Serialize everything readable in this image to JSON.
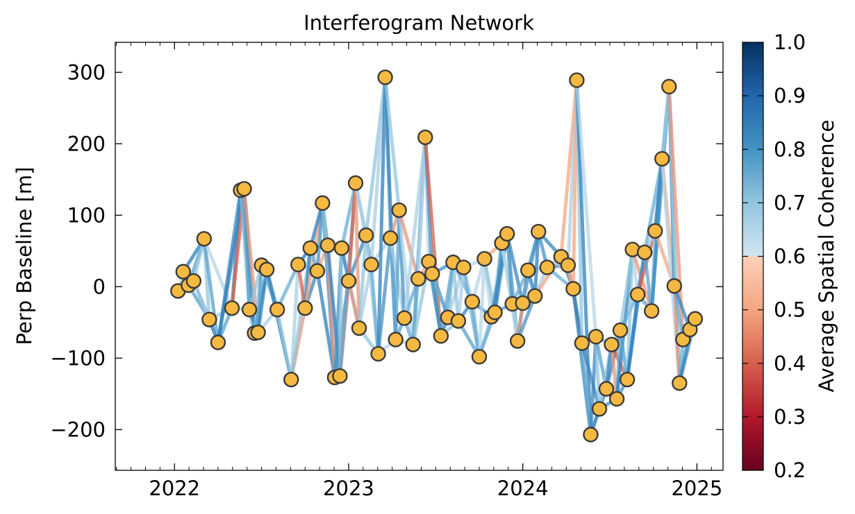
{
  "chart_data": {
    "type": "scatter",
    "title": "Interferogram Network",
    "xlabel": "",
    "ylabel": "Perp Baseline [m]",
    "xlim": [
      2021.66,
      2025.15
    ],
    "ylim": [
      -257,
      342
    ],
    "x_ticks": [
      2022,
      2023,
      2024,
      2025
    ],
    "x_tick_labels": [
      "2022",
      "2023",
      "2024",
      "2025"
    ],
    "y_ticks": [
      -200,
      -100,
      0,
      100,
      200,
      300
    ],
    "y_tick_labels": [
      "−200",
      "−100",
      "0",
      "100",
      "200",
      "300"
    ],
    "grid": false,
    "marker_color": "#f5b942",
    "colorbar": {
      "label": "Average Spatial Coherence",
      "min": 0.2,
      "max": 1.0,
      "ticks": [
        0.2,
        0.3,
        0.4,
        0.5,
        0.6,
        0.7,
        0.8,
        0.9,
        1.0
      ],
      "tick_labels": [
        "0.2",
        "0.3",
        "0.4",
        "0.5",
        "0.6",
        "0.7",
        "0.8",
        "0.9",
        "1.0"
      ]
    },
    "acquisitions": [
      [
        2022.02,
        -6
      ],
      [
        2022.05,
        21
      ],
      [
        2022.08,
        2
      ],
      [
        2022.11,
        8
      ],
      [
        2022.17,
        67
      ],
      [
        2022.2,
        -46
      ],
      [
        2022.25,
        -78
      ],
      [
        2022.33,
        -30
      ],
      [
        2022.38,
        135
      ],
      [
        2022.4,
        137
      ],
      [
        2022.43,
        -32
      ],
      [
        2022.46,
        -65
      ],
      [
        2022.48,
        -64
      ],
      [
        2022.5,
        30
      ],
      [
        2022.53,
        24
      ],
      [
        2022.59,
        -32
      ],
      [
        2022.67,
        -130
      ],
      [
        2022.71,
        31
      ],
      [
        2022.75,
        -30
      ],
      [
        2022.78,
        54
      ],
      [
        2022.82,
        22
      ],
      [
        2022.85,
        117
      ],
      [
        2022.88,
        58
      ],
      [
        2022.92,
        -127
      ],
      [
        2022.95,
        -125
      ],
      [
        2022.96,
        54
      ],
      [
        2023.0,
        8
      ],
      [
        2023.04,
        145
      ],
      [
        2023.06,
        -58
      ],
      [
        2023.1,
        72
      ],
      [
        2023.13,
        31
      ],
      [
        2023.17,
        -94
      ],
      [
        2023.21,
        293
      ],
      [
        2023.24,
        68
      ],
      [
        2023.27,
        -74
      ],
      [
        2023.29,
        107
      ],
      [
        2023.32,
        -44
      ],
      [
        2023.37,
        -81
      ],
      [
        2023.4,
        11
      ],
      [
        2023.44,
        209
      ],
      [
        2023.46,
        35
      ],
      [
        2023.48,
        18
      ],
      [
        2023.53,
        -69
      ],
      [
        2023.57,
        -43
      ],
      [
        2023.6,
        34
      ],
      [
        2023.63,
        -48
      ],
      [
        2023.66,
        27
      ],
      [
        2023.71,
        -21
      ],
      [
        2023.75,
        -98
      ],
      [
        2023.78,
        39
      ],
      [
        2023.82,
        -42
      ],
      [
        2023.84,
        -36
      ],
      [
        2023.88,
        61
      ],
      [
        2023.91,
        74
      ],
      [
        2023.94,
        -24
      ],
      [
        2023.97,
        -76
      ],
      [
        2024.0,
        -23
      ],
      [
        2024.03,
        23
      ],
      [
        2024.07,
        -13
      ],
      [
        2024.09,
        77
      ],
      [
        2024.14,
        27
      ],
      [
        2024.22,
        42
      ],
      [
        2024.26,
        30
      ],
      [
        2024.29,
        -3
      ],
      [
        2024.31,
        289
      ],
      [
        2024.34,
        -79
      ],
      [
        2024.39,
        -207
      ],
      [
        2024.42,
        -70
      ],
      [
        2024.44,
        -171
      ],
      [
        2024.48,
        -143
      ],
      [
        2024.51,
        -81
      ],
      [
        2024.54,
        -157
      ],
      [
        2024.56,
        -61
      ],
      [
        2024.6,
        -130
      ],
      [
        2024.63,
        52
      ],
      [
        2024.66,
        -11
      ],
      [
        2024.7,
        48
      ],
      [
        2024.74,
        -34
      ],
      [
        2024.76,
        78
      ],
      [
        2024.8,
        179
      ],
      [
        2024.84,
        280
      ],
      [
        2024.87,
        1
      ],
      [
        2024.9,
        -135
      ],
      [
        2024.92,
        -74
      ],
      [
        2024.96,
        -60
      ],
      [
        2024.99,
        -45
      ]
    ]
  }
}
